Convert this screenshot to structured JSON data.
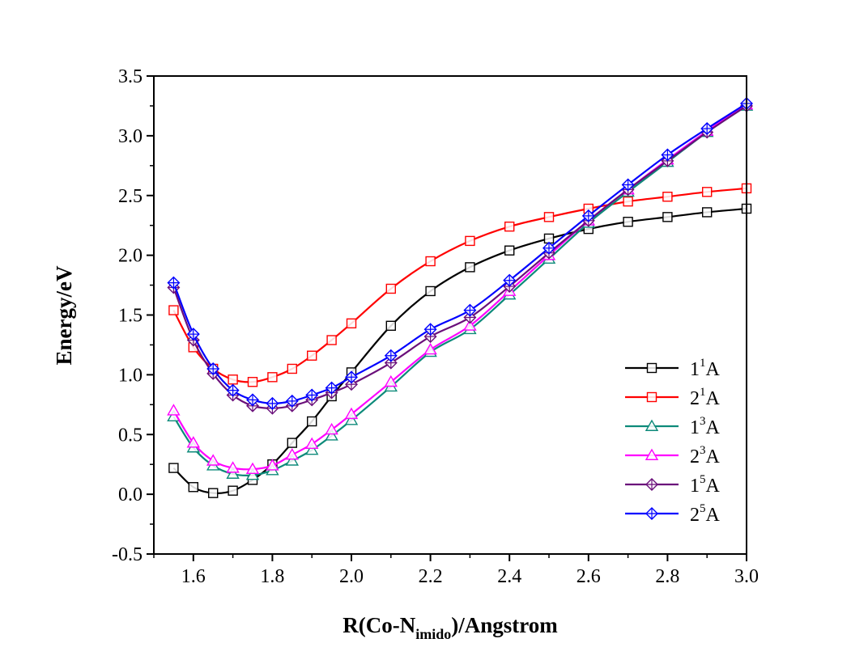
{
  "chart_data": {
    "type": "line",
    "xlabel_parts": [
      "R(Co-N",
      "imido",
      ")/Angstrom"
    ],
    "ylabel": "Energy/eV",
    "xlim": [
      1.5,
      3.0
    ],
    "ylim": [
      -0.5,
      3.5
    ],
    "xticks": [
      1.6,
      1.8,
      2.0,
      2.2,
      2.4,
      2.6,
      2.8,
      3.0
    ],
    "xtick_labels": [
      "1.6",
      "1.8",
      "2.0",
      "2.2",
      "2.4",
      "2.6",
      "2.8",
      "3.0"
    ],
    "yticks": [
      -0.5,
      0.0,
      0.5,
      1.0,
      1.5,
      2.0,
      2.5,
      3.0,
      3.5
    ],
    "ytick_labels": [
      "-0.5",
      "0.0",
      "0.5",
      "1.0",
      "1.5",
      "2.0",
      "2.5",
      "3.0",
      "3.5"
    ],
    "grid": false,
    "legend_position": "bottom-right",
    "x": [
      1.55,
      1.6,
      1.65,
      1.7,
      1.75,
      1.8,
      1.85,
      1.9,
      1.95,
      2.0,
      2.1,
      2.2,
      2.3,
      2.4,
      2.5,
      2.6,
      2.7,
      2.8,
      2.9,
      3.0
    ],
    "series": [
      {
        "name": "1¹A",
        "num": "1",
        "sup": "1",
        "suffix": "A",
        "color": "#000000",
        "marker": "square",
        "values": [
          0.22,
          0.06,
          0.01,
          0.03,
          0.12,
          0.25,
          0.43,
          0.61,
          0.82,
          1.02,
          1.41,
          1.7,
          1.9,
          2.04,
          2.14,
          2.22,
          2.28,
          2.32,
          2.36,
          2.39
        ]
      },
      {
        "name": "2¹A",
        "num": "2",
        "sup": "1",
        "suffix": "A",
        "color": "#ff0000",
        "marker": "square",
        "values": [
          1.54,
          1.23,
          1.05,
          0.96,
          0.94,
          0.98,
          1.05,
          1.16,
          1.29,
          1.43,
          1.72,
          1.95,
          2.12,
          2.24,
          2.32,
          2.39,
          2.45,
          2.49,
          2.53,
          2.56
        ]
      },
      {
        "name": "1³A",
        "num": "1",
        "sup": "3",
        "suffix": "A",
        "color": "#0d8a7a",
        "marker": "triangle",
        "values": [
          0.65,
          0.39,
          0.24,
          0.17,
          0.16,
          0.2,
          0.28,
          0.37,
          0.49,
          0.62,
          0.9,
          1.19,
          1.38,
          1.67,
          1.97,
          2.27,
          2.53,
          2.78,
          3.03,
          3.25
        ]
      },
      {
        "name": "2³A",
        "num": "2",
        "sup": "3",
        "suffix": "A",
        "color": "#ff00ff",
        "marker": "triangle",
        "values": [
          0.7,
          0.43,
          0.28,
          0.22,
          0.21,
          0.24,
          0.33,
          0.42,
          0.54,
          0.67,
          0.94,
          1.21,
          1.41,
          1.7,
          2.0,
          2.29,
          2.55,
          2.8,
          3.04,
          3.26
        ]
      },
      {
        "name": "1⁵A",
        "num": "1",
        "sup": "5",
        "suffix": "A",
        "color": "#6a0f7a",
        "marker": "diamond",
        "values": [
          1.73,
          1.29,
          1.01,
          0.83,
          0.74,
          0.72,
          0.74,
          0.79,
          0.85,
          0.92,
          1.1,
          1.32,
          1.48,
          1.74,
          2.02,
          2.29,
          2.55,
          2.79,
          3.03,
          3.25
        ]
      },
      {
        "name": "2⁵A",
        "num": "2",
        "sup": "5",
        "suffix": "A",
        "color": "#0000ff",
        "marker": "diamond",
        "values": [
          1.77,
          1.34,
          1.05,
          0.87,
          0.79,
          0.76,
          0.78,
          0.83,
          0.89,
          0.98,
          1.16,
          1.38,
          1.54,
          1.79,
          2.06,
          2.33,
          2.59,
          2.84,
          3.06,
          3.27
        ]
      }
    ]
  }
}
